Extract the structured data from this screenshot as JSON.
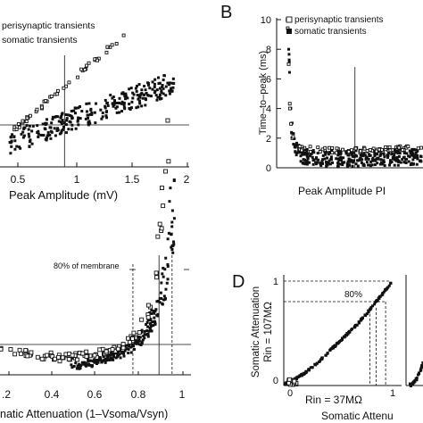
{
  "panels": {
    "A": {
      "xlabel": "Peak Amplitude  (mV)",
      "xticks": [
        "0.5",
        "1",
        "1.5",
        "2"
      ],
      "legend": [
        "perisynaptic transients",
        "somatic transients"
      ]
    },
    "B": {
      "letter": "B",
      "ylabel": "Time–to–peak  (ms)",
      "yticks": [
        "0",
        "2",
        "4",
        "6",
        "8",
        "10"
      ],
      "xlabel": "Peak Amplitude PI",
      "legend": [
        "perisynaptic transients",
        "somatic transients"
      ]
    },
    "C": {
      "xlabel": "natic Attenuation (1–Vsoma/Vsyn)",
      "xticks": [
        ".2",
        "0.4",
        "0.6",
        "0.8",
        "1"
      ],
      "annotation": "80% of membrane"
    },
    "D": {
      "letter": "D",
      "ylabel_line1": "Somatic Attenuation",
      "ylabel_line2": "Rin = 107MΩ",
      "xlabel_line1": "Rin = 37MΩ",
      "xlabel_line2": "Somatic Attenu",
      "ticks": [
        "0",
        "1"
      ],
      "annotation": "80%"
    }
  },
  "chart_data": [
    {
      "panel": "A",
      "type": "scatter",
      "xlabel": "Peak Amplitude  (mV)",
      "xlim": [
        0.0,
        2.0
      ],
      "xticks": [
        0.5,
        1,
        1.5,
        2
      ],
      "reference_lines": {
        "vertical_x": 0.65
      },
      "series": [
        {
          "name": "perisynaptic transients",
          "marker": "open-square",
          "x": [
            0.1,
            0.25,
            0.4,
            0.55,
            0.7,
            0.85,
            1.0,
            1.15,
            1.3
          ],
          "y": [
            0.38,
            0.5,
            0.62,
            0.74,
            0.86,
            0.98,
            1.1,
            1.22,
            1.34
          ]
        },
        {
          "name": "somatic transients",
          "marker": "filled-square",
          "x": [
            0.05,
            0.2,
            0.35,
            0.5,
            0.65,
            0.8,
            0.95,
            1.1,
            1.25,
            1.4,
            1.55,
            1.7,
            1.85
          ],
          "y": [
            0.25,
            0.3,
            0.35,
            0.4,
            0.45,
            0.5,
            0.55,
            0.6,
            0.65,
            0.7,
            0.75,
            0.8,
            0.85
          ]
        }
      ]
    },
    {
      "panel": "B",
      "type": "scatter",
      "ylabel": "Time–to–peak  (ms)",
      "ylim": [
        0,
        10
      ],
      "yticks": [
        0,
        2,
        4,
        6,
        8,
        10
      ],
      "xlim": [
        0.0,
        1.3
      ],
      "reference_lines": {
        "vertical_x": 0.65
      },
      "series": [
        {
          "name": "perisynaptic transients",
          "marker": "open-square",
          "x": [
            0.09,
            0.1,
            0.11,
            0.13,
            0.2,
            0.4,
            0.6,
            0.8,
            1.0,
            1.2
          ],
          "y": [
            10.0,
            7.0,
            4.0,
            2.0,
            1.3,
            1.2,
            1.15,
            1.2,
            1.3,
            1.35
          ]
        },
        {
          "name": "somatic transients",
          "marker": "filled-square",
          "x": [
            0.1,
            0.12,
            0.15,
            0.2,
            0.4,
            0.6,
            0.8,
            1.0,
            1.2
          ],
          "y": [
            8.0,
            3.0,
            1.4,
            0.8,
            0.6,
            0.6,
            0.65,
            0.7,
            0.75
          ]
        }
      ]
    },
    {
      "panel": "C",
      "type": "scatter",
      "xlabel": "natic Attenuation (1–Vsoma/Vsyn)",
      "xlim": [
        0.1,
        1.0
      ],
      "xticks": [
        0.2,
        0.4,
        0.6,
        0.8,
        1.0
      ],
      "reference_lines": {
        "vertical_x": [
          0.77,
          0.89,
          0.95
        ]
      },
      "series": [
        {
          "name": "perisynaptic transients",
          "marker": "open-square",
          "x": [
            0.15,
            0.3,
            0.45,
            0.6,
            0.7,
            0.8,
            0.85,
            0.88,
            0.9,
            0.92,
            0.93
          ],
          "y": [
            0.15,
            0.12,
            0.1,
            0.12,
            0.15,
            0.25,
            0.4,
            0.6,
            0.85,
            1.2,
            1.5
          ]
        },
        {
          "name": "somatic transients",
          "marker": "filled-square",
          "x": [
            0.5,
            0.6,
            0.7,
            0.75,
            0.8,
            0.85,
            0.9,
            0.93,
            0.95,
            0.96
          ],
          "y": [
            0.05,
            0.08,
            0.12,
            0.15,
            0.2,
            0.3,
            0.45,
            0.65,
            0.9,
            1.15
          ]
        }
      ]
    },
    {
      "panel": "D",
      "type": "scatter",
      "xlabel": "Rin = 37MΩ",
      "ylabel": "Somatic Attenuation Rin = 107MΩ",
      "xlim": [
        0,
        1
      ],
      "ylim": [
        0,
        1
      ],
      "reference_lines": {
        "horizontal_y": [
          0.8,
          1.0
        ],
        "vertical_x": [
          0.8,
          0.86,
          0.95
        ]
      },
      "series": [
        {
          "name": "transients",
          "marker": "filled-square",
          "x": [
            0.0,
            0.05,
            0.1,
            0.2,
            0.3,
            0.4,
            0.5,
            0.6,
            0.7,
            0.8,
            0.9,
            1.0
          ],
          "y": [
            0.0,
            0.02,
            0.05,
            0.12,
            0.2,
            0.3,
            0.4,
            0.5,
            0.6,
            0.72,
            0.85,
            0.98
          ]
        }
      ]
    }
  ]
}
